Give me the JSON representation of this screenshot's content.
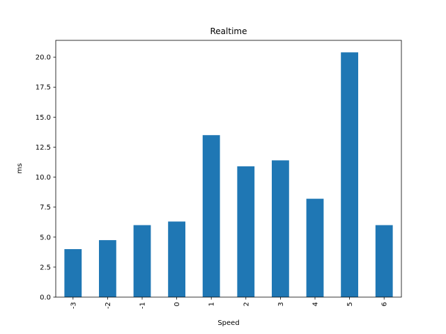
{
  "chart_data": {
    "type": "bar",
    "title": "Realtime",
    "xlabel": "Speed",
    "ylabel": "ms",
    "categories": [
      "-3",
      "-2",
      "-1",
      "0",
      "1",
      "2",
      "3",
      "4",
      "5",
      "6"
    ],
    "values": [
      4.0,
      4.75,
      6.0,
      6.3,
      13.5,
      10.9,
      11.4,
      8.2,
      20.4,
      6.0
    ],
    "ylim": [
      0,
      21.4
    ],
    "yticks": [
      "0.0",
      "2.5",
      "5.0",
      "7.5",
      "10.0",
      "12.5",
      "15.0",
      "17.5",
      "20.0"
    ],
    "bar_color": "#1f77b4",
    "grid": false,
    "legend": "none"
  }
}
